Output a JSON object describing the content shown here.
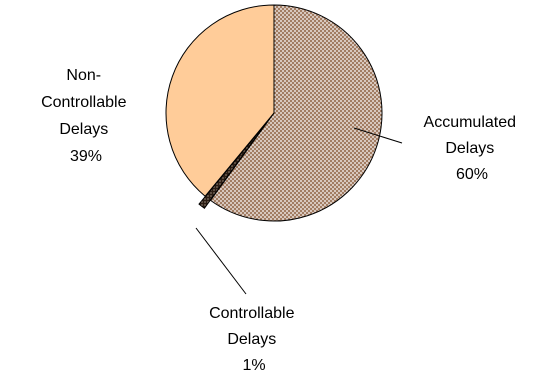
{
  "chart_data": {
    "type": "pie",
    "title": "",
    "slices": [
      {
        "label": [
          "Accumulated",
          "Delays"
        ],
        "percent_label": "60%",
        "value": 60,
        "fill": "#a27d63",
        "pattern": "dots"
      },
      {
        "label": [
          "Controllable",
          "Delays"
        ],
        "percent_label": "1%",
        "value": 1,
        "fill": "#2b1d14",
        "pattern": "dots-dark"
      },
      {
        "label": [
          "Non-",
          "Controllable",
          "Delays"
        ],
        "percent_label": "39%",
        "value": 39,
        "fill": "#ffcc99",
        "pattern": "none"
      }
    ],
    "start_angle_deg": 0,
    "direction": "clockwise",
    "legend": "none",
    "label_style": "outside-with-leader-lines"
  }
}
